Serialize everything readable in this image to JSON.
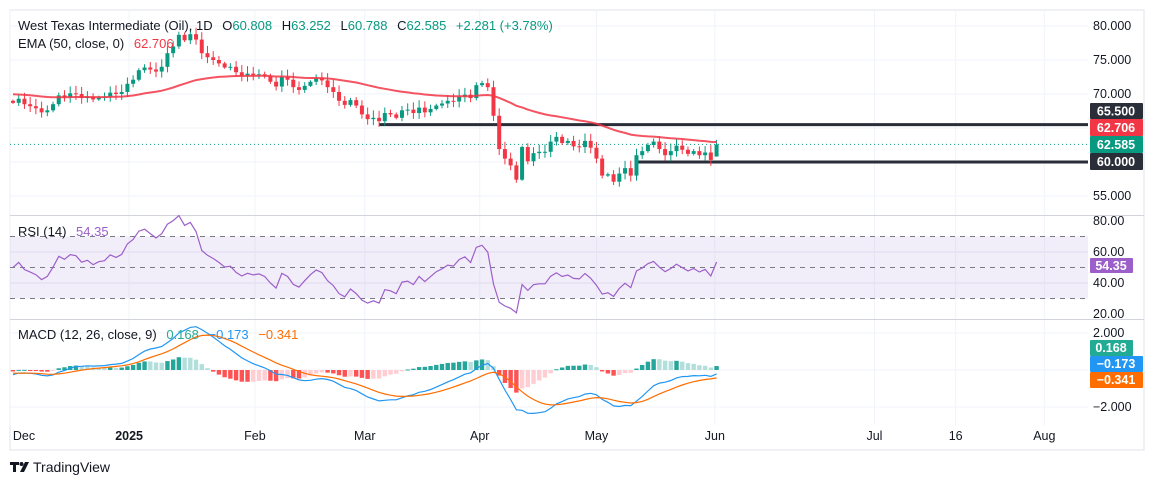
{
  "legend": {
    "symbol": "West Texas Intermediate (Oil), 1D",
    "o_label": "O",
    "o_value": "60.808",
    "h_label": "H",
    "h_value": "63.252",
    "l_label": "L",
    "l_value": "60.788",
    "c_label": "C",
    "c_value": "62.585",
    "change": "+2.281 (+3.78%)",
    "ema_label": "EMA (50, close, 0)",
    "ema_value": "62.706",
    "rsi_label": "RSI (14)",
    "rsi_value": "54.35",
    "macd_label": "MACD (12, 26, close, 9)",
    "macd_hist": "0.168",
    "macd_line": "−0.173",
    "macd_signal": "−0.341"
  },
  "price_tags": {
    "resistance": "65.500",
    "ema": "62.706",
    "last": "62.585",
    "support": "60.000",
    "rsi": "54.35",
    "macd_hist": "0.168",
    "macd_line": "−0.173",
    "macd_signal": "−0.341"
  },
  "colors": {
    "up": "#089981",
    "down": "#f23645",
    "ema": "#f23645",
    "level": "#2a2e39",
    "rsi": "#9c5fc9",
    "macd": "#2196f3",
    "signal": "#ff6d00",
    "hist_up_strong": "#26a69a",
    "hist_up_weak": "#b2dfdb",
    "hist_down_strong": "#ff5252",
    "hist_down_weak": "#ffcdd2"
  },
  "brand": {
    "name": "TradingView",
    "icon": "tradingview-logo-icon"
  },
  "chart_data": {
    "type": "candlestick",
    "interval": "1D",
    "price_ticks": [
      "80.000",
      "75.000",
      "70.000",
      "55.000"
    ],
    "price_tick_values": [
      80,
      75,
      70,
      55
    ],
    "rsi_ticks": [
      "80.00",
      "60.00",
      "40.00",
      "20.00"
    ],
    "rsi_tick_values": [
      80,
      60,
      40,
      20
    ],
    "rsi_bands": [
      70,
      50,
      30
    ],
    "macd_ticks": [
      "2.000",
      "−2.000"
    ],
    "macd_tick_values": [
      2,
      -2
    ],
    "x_ticks": [
      {
        "label": "Dec",
        "bold": false,
        "day_index": -0.5
      },
      {
        "label": "2025",
        "bold": true,
        "day_index": 20.3
      },
      {
        "label": "Feb",
        "bold": false,
        "day_index": 42.3
      },
      {
        "label": "Mar",
        "bold": false,
        "day_index": 61.5
      },
      {
        "label": "Apr",
        "bold": false,
        "day_index": 81.6
      },
      {
        "label": "May",
        "bold": false,
        "day_index": 102
      },
      {
        "label": "Jun",
        "bold": false,
        "day_index": 122.7
      },
      {
        "label": "Jul",
        "bold": false,
        "day_index": 150.6
      },
      {
        "label": "16",
        "bold": false,
        "day_index": 164.8
      },
      {
        "label": "Aug",
        "bold": false,
        "day_index": 180.3
      }
    ],
    "horizontal_levels": [
      {
        "value": 65.5,
        "from_day_index": 64
      },
      {
        "value": 60.0,
        "from_day_index": 109
      }
    ],
    "last_candle": {
      "open": 60.808,
      "high": 63.252,
      "low": 60.788,
      "close": 62.585
    },
    "closes": [
      68.7,
      69.3,
      68.5,
      68.2,
      67.9,
      67.3,
      67.6,
      68.5,
      69.8,
      69.5,
      70.1,
      70.0,
      69.4,
      69.6,
      69.2,
      69.5,
      69.6,
      70.2,
      70.0,
      70.3,
      71.5,
      72.1,
      73.5,
      73.9,
      73.6,
      73.3,
      74.0,
      76.0,
      77.0,
      78.7,
      77.9,
      78.8,
      78.0,
      76.0,
      75.4,
      75.0,
      74.5,
      73.9,
      74.0,
      73.2,
      72.7,
      73.0,
      72.8,
      72.9,
      72.6,
      71.8,
      71.1,
      72.5,
      72.1,
      71.0,
      70.6,
      71.2,
      71.8,
      72.3,
      72.0,
      71.0,
      70.3,
      69.0,
      68.4,
      69.1,
      68.3,
      67.0,
      66.3,
      66.5,
      66.0,
      67.2,
      67.0,
      66.5,
      67.6,
      67.7,
      67.2,
      68.0,
      67.3,
      67.8,
      68.3,
      68.6,
      69.0,
      68.9,
      69.6,
      69.9,
      69.4,
      71.3,
      71.6,
      71.0,
      66.8,
      61.9,
      60.5,
      59.5,
      57.4,
      62.2,
      60.1,
      61.3,
      61.5,
      61.5,
      63.0,
      63.7,
      62.8,
      63.1,
      62.3,
      62.2,
      63.1,
      62.1,
      60.5,
      58.0,
      58.2,
      57.1,
      58.3,
      59.1,
      58.0,
      61.0,
      61.6,
      62.5,
      63.0,
      61.9,
      61.0,
      61.6,
      62.4,
      61.8,
      61.2,
      61.6,
      61.0,
      61.4,
      60.304,
      62.585
    ]
  }
}
